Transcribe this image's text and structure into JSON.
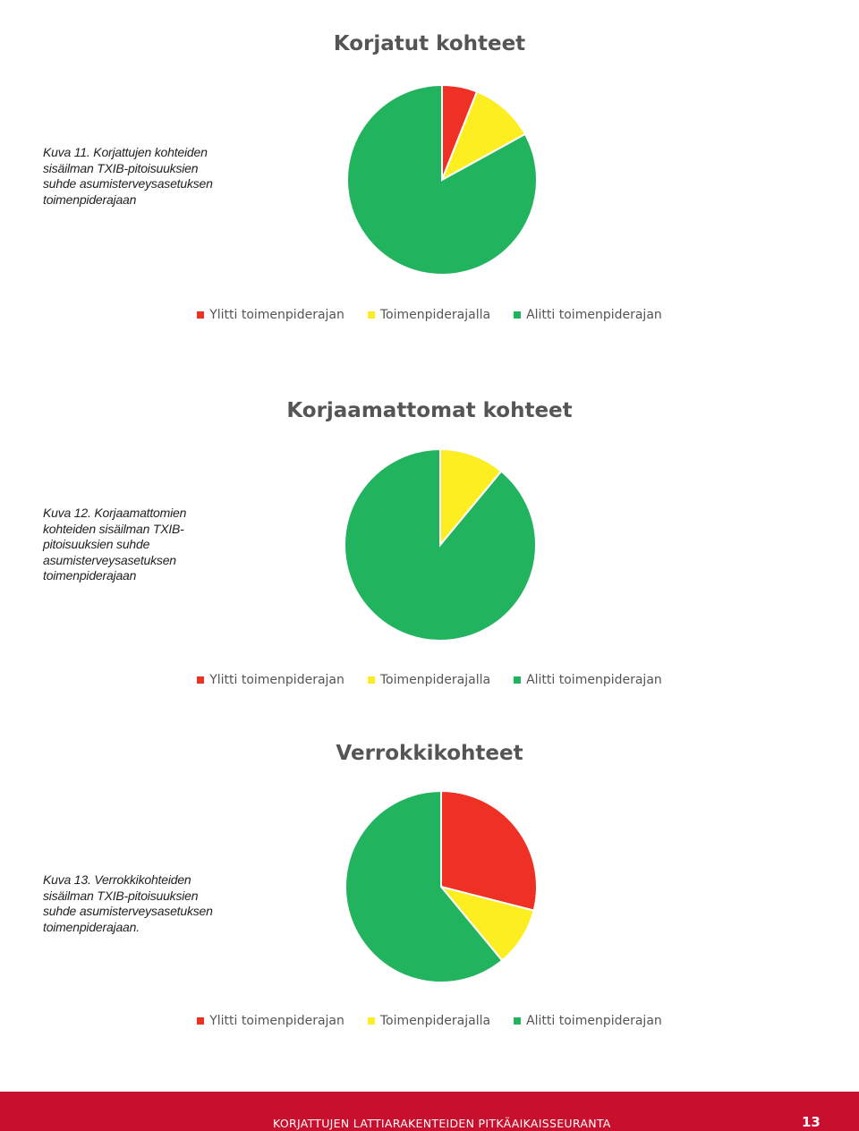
{
  "colors": {
    "red": "#ee3124",
    "yellow": "#fcee21",
    "green": "#22b35e"
  },
  "chart_data": [
    {
      "type": "pie",
      "title": "Korjatut kohteet",
      "caption": "Kuva 11. Korjattujen kohteiden sisäilman TXIB-pitoisuuksien suhde asumisterveysasetuksen toimenpiderajaan",
      "categories": [
        "Ylitti toimenpiderajan",
        "Toimenpiderajalla",
        "Alitti toimenpiderajan"
      ],
      "values": [
        6,
        11,
        83
      ],
      "colors": [
        "#ee3124",
        "#fcee21",
        "#22b35e"
      ],
      "legend": "bottom"
    },
    {
      "type": "pie",
      "title": "Korjaamattomat kohteet",
      "caption": "Kuva 12. Korjaamattomien kohteiden sisäilman TXIB-pitoisuuksien suhde asumisterveysasetuksen toimenpiderajaan",
      "categories": [
        "Ylitti toimenpiderajan",
        "Toimenpiderajalla",
        "Alitti toimenpiderajan"
      ],
      "values": [
        0,
        11,
        89
      ],
      "colors": [
        "#ee3124",
        "#fcee21",
        "#22b35e"
      ],
      "legend": "bottom"
    },
    {
      "type": "pie",
      "title": "Verrokkikohteet",
      "caption": "Kuva 13. Verrokkikohteiden sisäilman TXIB-pitoisuuksien suhde asumisterveysasetuksen toimenpiderajaan.",
      "categories": [
        "Ylitti toimenpiderajan",
        "Toimenpiderajalla",
        "Alitti toimenpiderajan"
      ],
      "values": [
        29,
        10,
        61
      ],
      "colors": [
        "#ee3124",
        "#fcee21",
        "#22b35e"
      ],
      "legend": "bottom"
    }
  ],
  "footer": {
    "title": "KORJATTUJEN LATTIARAKENTEIDEN PITKÄAIKAISSEURANTA",
    "page_number": "13"
  }
}
